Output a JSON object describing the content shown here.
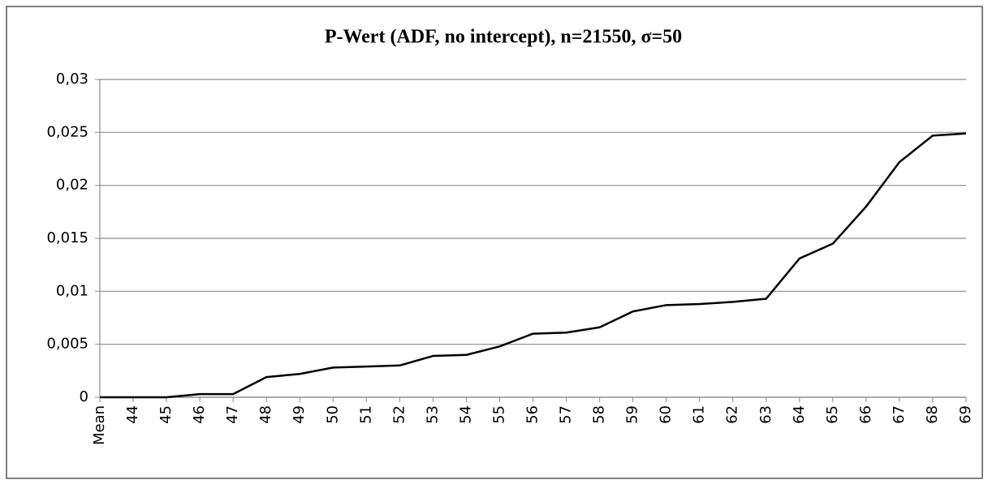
{
  "chart_data": {
    "type": "line",
    "title": "P-Wert (ADF, no intercept), n=21550, σ=50",
    "categories": [
      "Mean",
      "44",
      "45",
      "46",
      "47",
      "48",
      "49",
      "50",
      "51",
      "52",
      "53",
      "54",
      "55",
      "56",
      "57",
      "58",
      "59",
      "60",
      "61",
      "62",
      "63",
      "64",
      "65",
      "66",
      "67",
      "68",
      "69"
    ],
    "series": [
      {
        "name": "P-Wert",
        "color": "#000000",
        "values": [
          0,
          0,
          0,
          0.0003,
          0.0003,
          0.0019,
          0.0022,
          0.0028,
          0.0029,
          0.003,
          0.0039,
          0.004,
          0.0048,
          0.006,
          0.0061,
          0.0066,
          0.0081,
          0.0087,
          0.0088,
          0.009,
          0.0093,
          0.0131,
          0.0145,
          0.018,
          0.0222,
          0.0247,
          0.0249
        ]
      }
    ],
    "ylim": [
      0,
      0.03
    ],
    "yticks": [
      0,
      {
        "value": 0.005,
        "label": "0,005"
      },
      {
        "value": 0.01,
        "label": "0,01"
      },
      {
        "value": 0.015,
        "label": "0,015"
      },
      {
        "value": 0.02,
        "label": "0,02"
      },
      {
        "value": 0.025,
        "label": "0,025"
      },
      {
        "value": 0.03,
        "label": "0,03"
      }
    ],
    "grid": true
  }
}
